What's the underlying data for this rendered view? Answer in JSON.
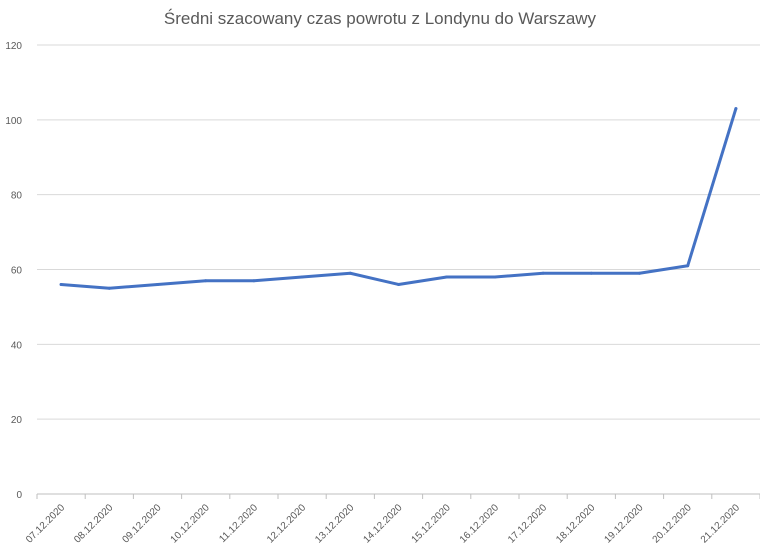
{
  "chart_data": {
    "type": "line",
    "title": "Średni szacowany czas powrotu z Londynu do Warszawy",
    "xlabel": "",
    "ylabel": "",
    "categories": [
      "07.12.2020",
      "08.12.2020",
      "09.12.2020",
      "10.12.2020",
      "11.12.2020",
      "12.12.2020",
      "13.12.2020",
      "14.12.2020",
      "15.12.2020",
      "16.12.2020",
      "17.12.2020",
      "18.12.2020",
      "19.12.2020",
      "20.12.2020",
      "21.12.2020"
    ],
    "series": [
      {
        "values": [
          56,
          55,
          56,
          57,
          57,
          58,
          59,
          56,
          58,
          58,
          59,
          59,
          59,
          61,
          103
        ]
      }
    ],
    "ylim": [
      0,
      120
    ],
    "yticks": [
      0,
      20,
      40,
      60,
      80,
      100,
      120
    ],
    "grid": true,
    "legend": "none",
    "colors": {
      "line": "#4472c4",
      "grid": "#d9d9d9",
      "text": "#595959"
    }
  }
}
